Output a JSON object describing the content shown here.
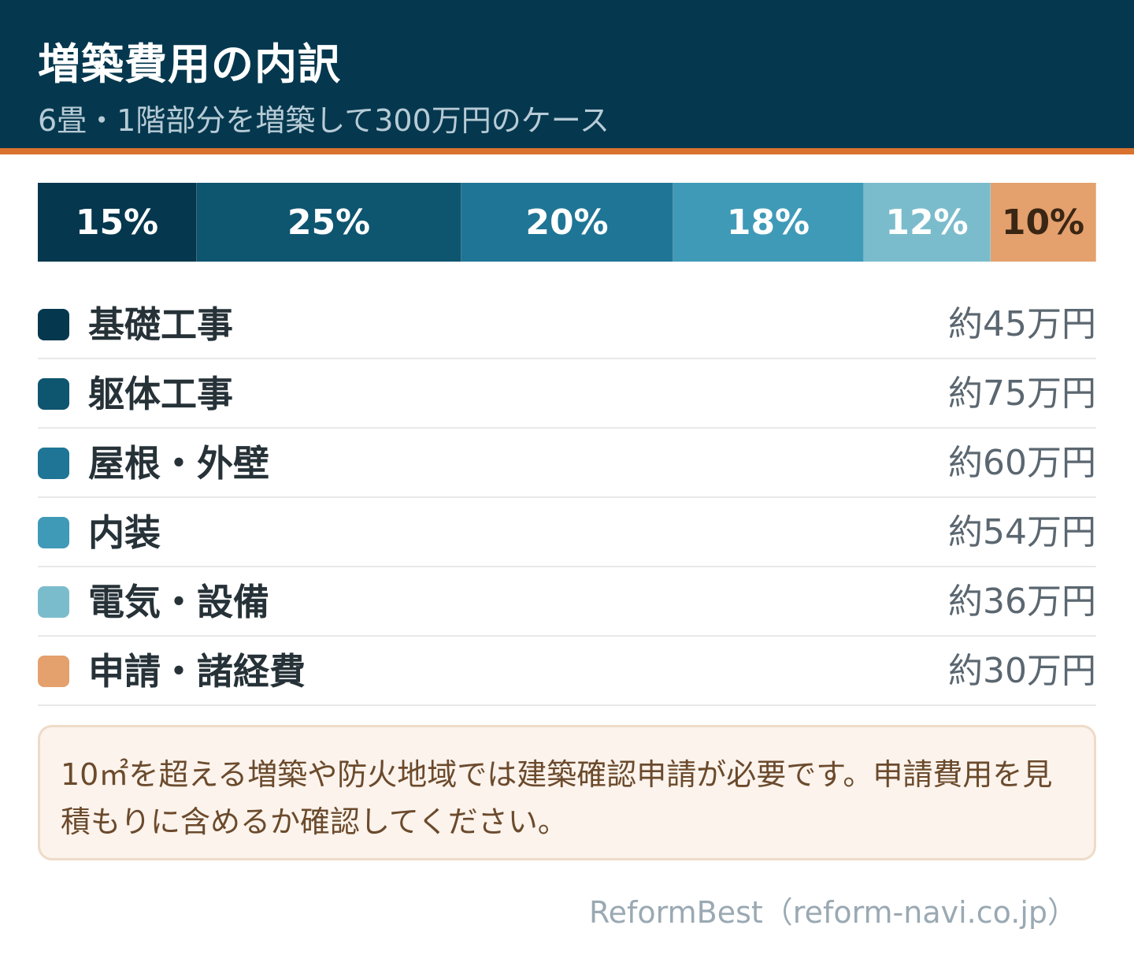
{
  "header": {
    "title": "増築費用の内訳",
    "subtitle": "6畳・1階部分を増築して300万円のケース"
  },
  "chart_data": {
    "type": "bar",
    "subtype": "100%-stacked-horizontal",
    "title": "増築費用の内訳",
    "subtitle": "6畳・1階部分を増築して300万円のケース",
    "categories": [
      "基礎工事",
      "躯体工事",
      "屋根・外壁",
      "内装",
      "電気・設備",
      "申請・諸経費"
    ],
    "values": [
      15,
      25,
      20,
      18,
      12,
      10
    ],
    "value_labels": [
      "15%",
      "25%",
      "20%",
      "18%",
      "12%",
      "10%"
    ],
    "amounts": [
      "約45万円",
      "約75万円",
      "約60万円",
      "約54万円",
      "約36万円",
      "約30万円"
    ],
    "colors": [
      "#05384e",
      "#0e5570",
      "#1f7596",
      "#3f9ab8",
      "#7bbccc",
      "#e4a06d"
    ],
    "label_colors": [
      "#ffffff",
      "#ffffff",
      "#ffffff",
      "#ffffff",
      "#ffffff",
      "#3a2614"
    ],
    "legend_position": "below"
  },
  "note": {
    "text": "10㎡を超える増築や防火地域では建築確認申請が必要です。申請費用を見積もりに含めるか確認してください。"
  },
  "footer": {
    "credit": "ReformBest（reform-navi.co.jp）"
  }
}
